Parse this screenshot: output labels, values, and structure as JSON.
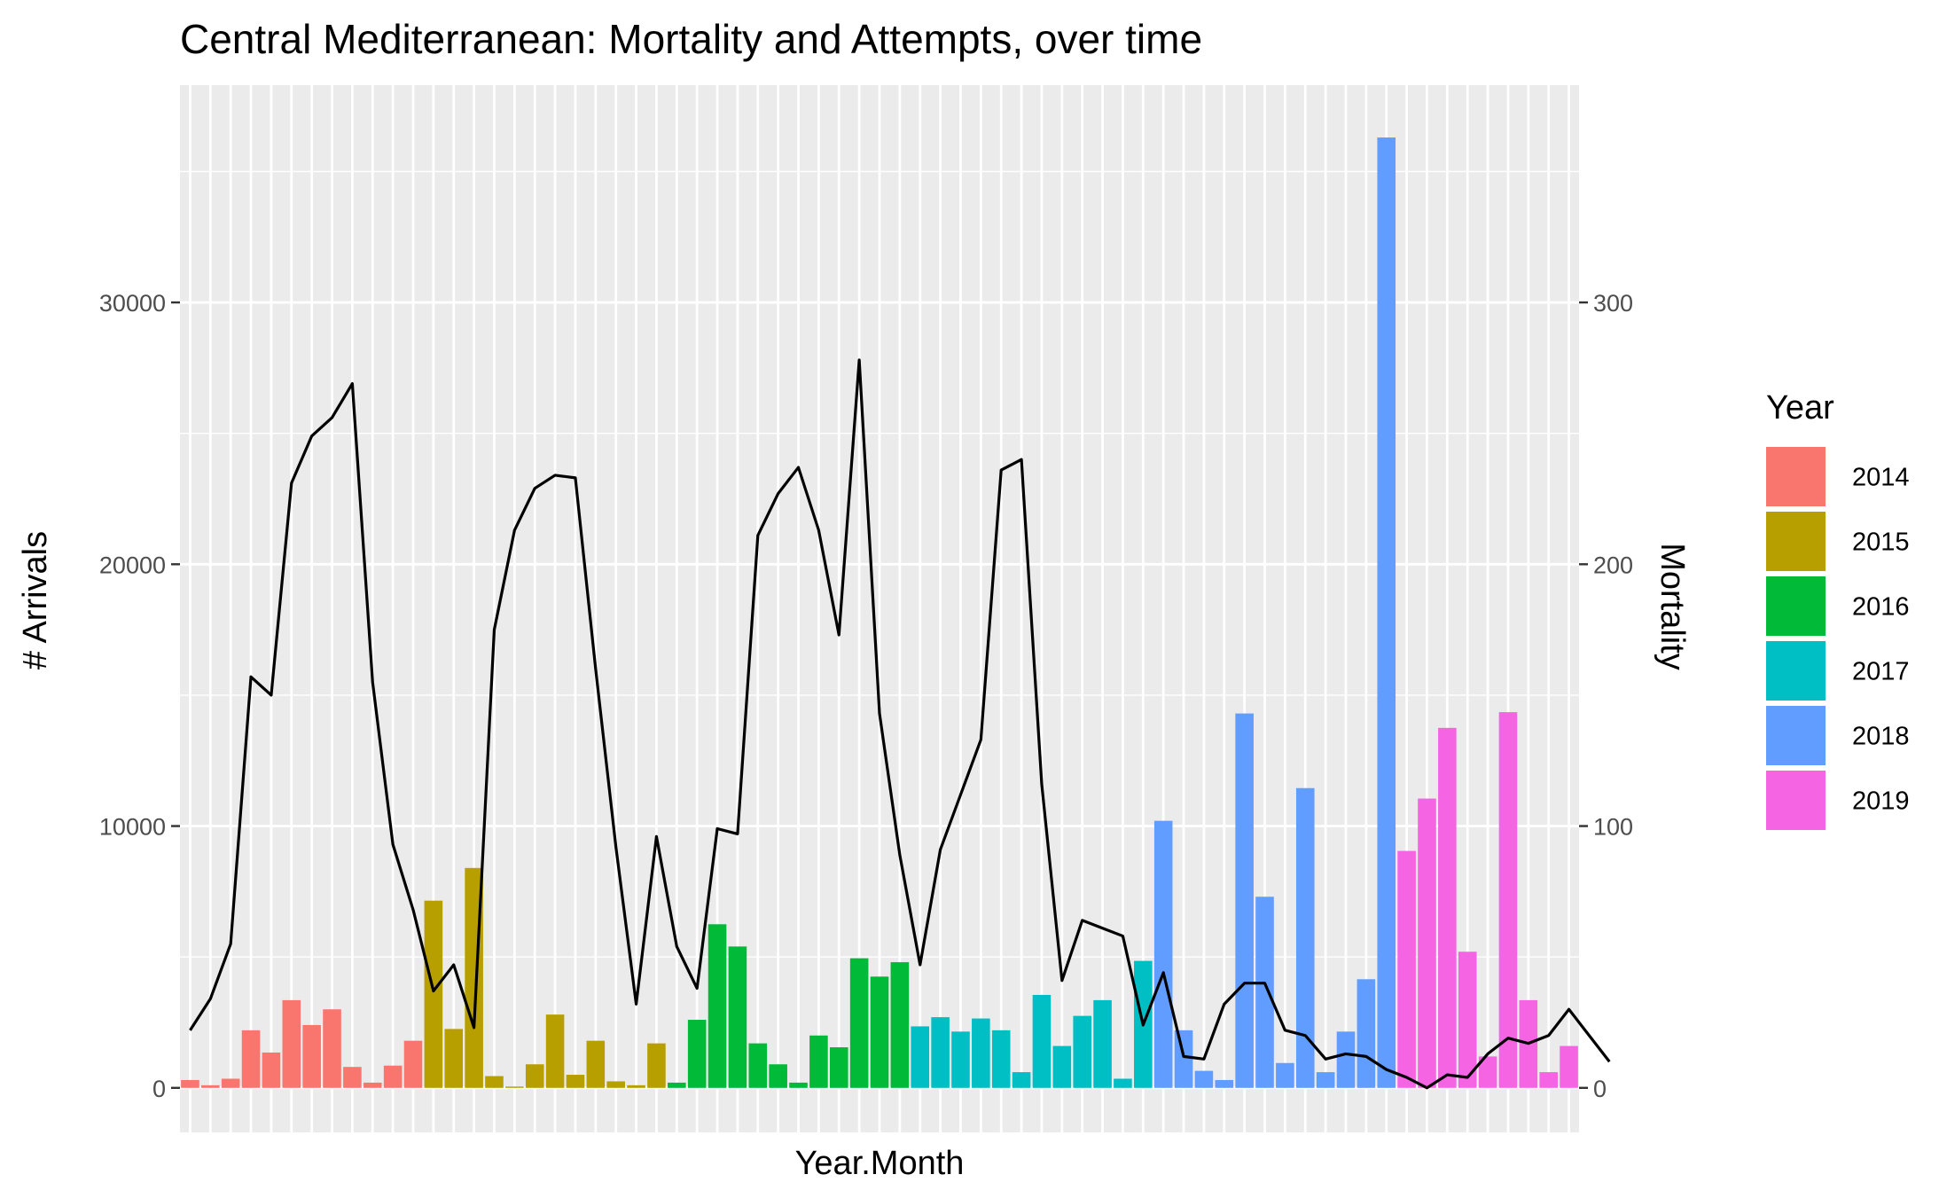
{
  "chart_data": {
    "type": "bar",
    "title": "Central Mediterranean: Mortality and Attempts, over time",
    "xlabel": "Year.Month",
    "ylabel": "# Arrivals",
    "y2label": "Mortality",
    "ylim": [
      -1700,
      38300
    ],
    "y2lim": [
      -17,
      383
    ],
    "yticks": [
      0,
      10000,
      20000,
      30000
    ],
    "y2ticks": [
      0,
      100,
      200,
      300
    ],
    "grid": true,
    "legend": {
      "title": "Year",
      "position": "right"
    },
    "series": [
      {
        "name": "2014",
        "color": "#F8766D",
        "arrivals": [
          300,
          100,
          350,
          2200,
          1350,
          3350,
          2400,
          3000,
          800,
          200,
          850,
          1800
        ]
      },
      {
        "name": "2015",
        "color": "#B79F00",
        "arrivals": [
          7150,
          2250,
          8400,
          450,
          50,
          900,
          2800,
          500,
          1800,
          250,
          100,
          1700
        ]
      },
      {
        "name": "2016",
        "color": "#00BA38",
        "arrivals": [
          200,
          2600,
          6250,
          5400,
          1700,
          900,
          200,
          2000,
          1550,
          4950,
          4250,
          4800
        ]
      },
      {
        "name": "2017",
        "color": "#00BFC4",
        "arrivals": [
          2350,
          2700,
          2150,
          2650,
          2200,
          600,
          3550,
          1600,
          2750,
          3350,
          350,
          4850
        ]
      },
      {
        "name": "2018",
        "color": "#619CFF",
        "arrivals": [
          10200,
          2200,
          650,
          300,
          14300,
          7300,
          950,
          11450,
          600,
          2150,
          4150,
          36300
        ]
      },
      {
        "name": "2019",
        "color": "#F564E3",
        "arrivals": [
          9050,
          11050,
          13750,
          5200,
          1200,
          14350,
          3350,
          600,
          1600
        ]
      }
    ],
    "mortality": [
      22,
      34,
      55,
      157,
      150,
      231,
      249,
      256,
      269,
      155,
      93,
      68,
      37,
      47,
      23,
      175,
      213,
      229,
      234,
      233,
      160,
      92,
      32,
      96,
      54,
      38,
      99,
      97,
      211,
      227,
      237,
      213,
      173,
      278,
      143,
      89,
      47,
      91,
      112,
      133,
      236,
      240,
      116,
      41,
      64,
      61,
      58,
      24,
      44,
      12,
      11,
      32,
      40,
      40,
      22,
      20,
      11,
      13,
      12,
      7,
      4,
      0,
      5,
      4,
      13,
      19,
      17,
      20,
      30,
      20,
      10
    ]
  }
}
